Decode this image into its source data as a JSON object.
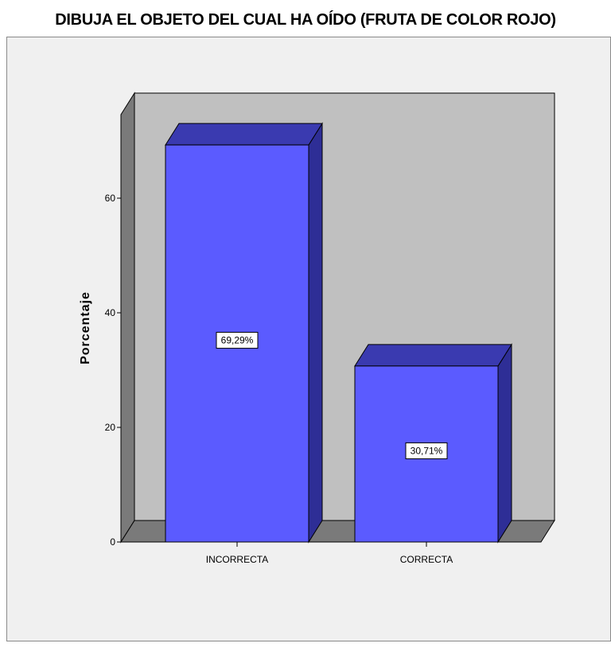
{
  "chart_data": {
    "type": "bar",
    "title": "DIBUJA EL OBJETO DEL CUAL HA OÍDO (FRUTA DE COLOR ROJO)",
    "ylabel": "Porcentaje",
    "xlabel": "",
    "categories": [
      "INCORRECTA",
      "CORRECTA"
    ],
    "values": [
      69.29,
      30.71
    ],
    "data_labels": [
      "69,29%",
      "30,71%"
    ],
    "yticks": [
      0,
      20,
      40,
      60
    ],
    "ytick_labels": [
      "0",
      "20",
      "40",
      "60"
    ],
    "ylim": [
      0,
      77
    ],
    "grid": false,
    "legend": "none",
    "style": "3d",
    "colors": {
      "bar_front": "#5b5bff",
      "bar_top": "#3a3ab0",
      "bar_side": "#2e2e96",
      "back_wall": "#c0c0c0",
      "side_wall": "#7a7a7a",
      "floor": "#7a7a7a",
      "frame_bg": "#f0f0f0"
    }
  }
}
